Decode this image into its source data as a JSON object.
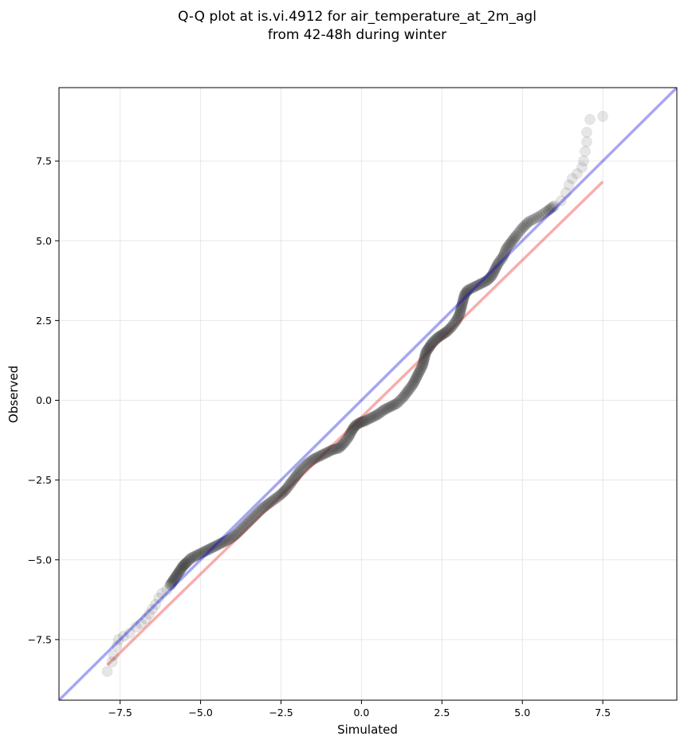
{
  "chart_data": {
    "type": "scatter",
    "title_line1": "Q-Q plot at is.vi.4912 for air_temperature_at_2m_agl",
    "title_line2": "from 42-48h during winter",
    "xlabel": "Simulated",
    "ylabel": "Observed",
    "xlim": [
      -9.4,
      9.8
    ],
    "ylim": [
      -9.4,
      9.8
    ],
    "xticks": [
      -7.5,
      -5.0,
      -2.5,
      0.0,
      2.5,
      5.0,
      7.5
    ],
    "yticks": [
      -7.5,
      -5.0,
      -2.5,
      0.0,
      2.5,
      5.0,
      7.5
    ],
    "xtick_labels": [
      "−7.5",
      "−5.0",
      "−2.5",
      "0.0",
      "2.5",
      "5.0",
      "7.5"
    ],
    "ytick_labels": [
      "−7.5",
      "−5.0",
      "−2.5",
      "0.0",
      "2.5",
      "5.0",
      "7.5"
    ],
    "grid": true,
    "reference_line": {
      "x": [
        -9.4,
        9.8
      ],
      "y": [
        -9.4,
        9.8
      ],
      "color": "#0000dd"
    },
    "fit_line": {
      "x": [
        -7.9,
        7.5
      ],
      "y": [
        -8.3,
        6.85
      ],
      "color": "#ee3333"
    },
    "point_color": "#333333",
    "points": [
      [
        -7.9,
        -8.5
      ],
      [
        -7.75,
        -8.2
      ],
      [
        -7.7,
        -8.0
      ],
      [
        -7.6,
        -7.7
      ],
      [
        -7.55,
        -7.5
      ],
      [
        -7.4,
        -7.4
      ],
      [
        -7.2,
        -7.3
      ],
      [
        -7.0,
        -7.1
      ],
      [
        -6.85,
        -7.0
      ],
      [
        -6.7,
        -6.85
      ],
      [
        -6.6,
        -6.7
      ],
      [
        -6.5,
        -6.55
      ],
      [
        -6.4,
        -6.4
      ],
      [
        -6.3,
        -6.2
      ],
      [
        -6.2,
        -6.05
      ],
      [
        -6.05,
        -5.95
      ],
      [
        -5.95,
        -5.8
      ],
      [
        -5.85,
        -5.65
      ],
      [
        -5.75,
        -5.5
      ],
      [
        -5.65,
        -5.35
      ],
      [
        -5.55,
        -5.2
      ],
      [
        -5.45,
        -5.1
      ],
      [
        -5.3,
        -4.95
      ],
      [
        -5.1,
        -4.85
      ],
      [
        -4.9,
        -4.75
      ],
      [
        -4.7,
        -4.65
      ],
      [
        -4.5,
        -4.55
      ],
      [
        -4.3,
        -4.45
      ],
      [
        -4.1,
        -4.35
      ],
      [
        -3.9,
        -4.2
      ],
      [
        -3.7,
        -4.0
      ],
      [
        -3.5,
        -3.8
      ],
      [
        -3.3,
        -3.6
      ],
      [
        -3.1,
        -3.4
      ],
      [
        -2.9,
        -3.25
      ],
      [
        -2.7,
        -3.1
      ],
      [
        -2.5,
        -2.95
      ],
      [
        -2.35,
        -2.8
      ],
      [
        -2.2,
        -2.6
      ],
      [
        -2.05,
        -2.4
      ],
      [
        -1.9,
        -2.2
      ],
      [
        -1.7,
        -2.0
      ],
      [
        -1.5,
        -1.85
      ],
      [
        -1.3,
        -1.75
      ],
      [
        -1.1,
        -1.65
      ],
      [
        -0.9,
        -1.55
      ],
      [
        -0.7,
        -1.5
      ],
      [
        -0.55,
        -1.35
      ],
      [
        -0.4,
        -1.15
      ],
      [
        -0.3,
        -0.95
      ],
      [
        -0.2,
        -0.8
      ],
      [
        -0.05,
        -0.7
      ],
      [
        0.1,
        -0.65
      ],
      [
        0.3,
        -0.55
      ],
      [
        0.5,
        -0.45
      ],
      [
        0.7,
        -0.3
      ],
      [
        0.9,
        -0.2
      ],
      [
        1.1,
        -0.1
      ],
      [
        1.3,
        0.1
      ],
      [
        1.45,
        0.3
      ],
      [
        1.6,
        0.5
      ],
      [
        1.7,
        0.7
      ],
      [
        1.8,
        0.9
      ],
      [
        1.9,
        1.1
      ],
      [
        1.95,
        1.3
      ],
      [
        2.0,
        1.5
      ],
      [
        2.1,
        1.65
      ],
      [
        2.2,
        1.8
      ],
      [
        2.35,
        1.95
      ],
      [
        2.5,
        2.05
      ],
      [
        2.65,
        2.15
      ],
      [
        2.8,
        2.3
      ],
      [
        2.95,
        2.5
      ],
      [
        3.05,
        2.7
      ],
      [
        3.1,
        2.9
      ],
      [
        3.15,
        3.1
      ],
      [
        3.2,
        3.3
      ],
      [
        3.3,
        3.45
      ],
      [
        3.5,
        3.55
      ],
      [
        3.7,
        3.65
      ],
      [
        3.9,
        3.75
      ],
      [
        4.05,
        3.9
      ],
      [
        4.15,
        4.1
      ],
      [
        4.25,
        4.3
      ],
      [
        4.4,
        4.5
      ],
      [
        4.5,
        4.75
      ],
      [
        4.65,
        4.95
      ],
      [
        4.8,
        5.15
      ],
      [
        5.0,
        5.4
      ],
      [
        5.2,
        5.6
      ],
      [
        5.5,
        5.75
      ],
      [
        5.8,
        5.95
      ],
      [
        6.0,
        6.1
      ],
      [
        6.2,
        6.25
      ],
      [
        6.35,
        6.5
      ],
      [
        6.45,
        6.75
      ],
      [
        6.55,
        6.95
      ],
      [
        6.7,
        7.1
      ],
      [
        6.85,
        7.3
      ],
      [
        6.9,
        7.5
      ],
      [
        6.95,
        7.8
      ],
      [
        7.0,
        8.1
      ],
      [
        7.0,
        8.4
      ],
      [
        7.1,
        8.8
      ],
      [
        7.5,
        8.9
      ]
    ]
  }
}
